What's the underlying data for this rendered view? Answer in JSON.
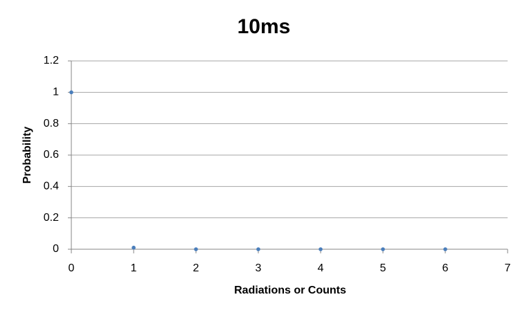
{
  "chart_data": {
    "type": "scatter",
    "title": "10ms",
    "x_label": "Radiations  or Counts",
    "y_label": "Probability",
    "series": [
      {
        "name": "Probability",
        "color": "#4a7ebb",
        "x": [
          0,
          1,
          2,
          3,
          4,
          5,
          6
        ],
        "values": [
          1,
          0.01,
          0,
          0,
          0,
          0,
          0
        ]
      }
    ],
    "xlim": [
      0,
      7
    ],
    "xticks": [
      0,
      1,
      2,
      3,
      4,
      5,
      6,
      7
    ],
    "ylim": [
      0,
      1.2
    ],
    "yticks": [
      0,
      0.2,
      0.4,
      0.6,
      0.8,
      1,
      1.2
    ],
    "grid": true
  }
}
